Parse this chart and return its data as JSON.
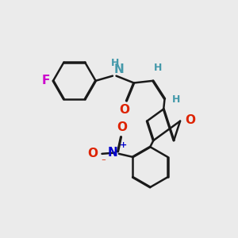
{
  "bg_color": "#ebebeb",
  "bond_color": "#1a1a1a",
  "bond_width": 1.8,
  "atom_colors": {
    "F": "#cc00cc",
    "N": "#0000cc",
    "NH": "#4499aa",
    "O": "#dd2200",
    "H": "#4499aa",
    "Nplus": "#0000cc",
    "Ominus": "#dd2200"
  },
  "font_size": 11
}
